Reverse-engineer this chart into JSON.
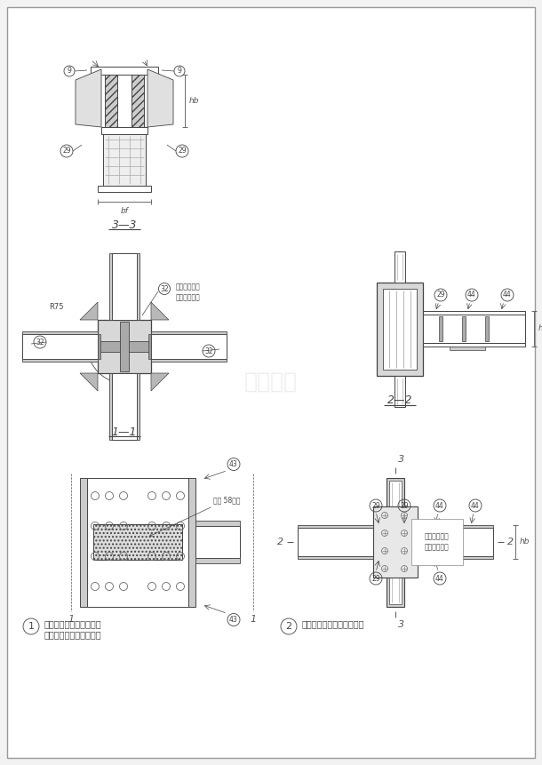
{
  "bg_color": "#f2f2f2",
  "border_color": "#999999",
  "line_color": "#444444",
  "dim_color": "#555555",
  "fill_light": "#d8d8d8",
  "fill_med": "#bbbbbb",
  "fill_white": "#ffffff",
  "title_3_3": "3—3",
  "title_1_1": "1—1",
  "title_2_2": "2—2",
  "label1_line1": "在钉骨混凝土结构中棁与",
  "label1_line2": "十字形截面柱刺刚性连接",
  "label2": "算形棁与算形柱的刚性连接",
  "note_1_1_line1": "属于这接头为",
  "note_1_1_line2": "十字形截面柱",
  "note_detail": "粘度 58连层",
  "note_box_line1": "安装制连接板",
  "note_box_line2": "及安装用螺栋",
  "watermark": "土木工库"
}
